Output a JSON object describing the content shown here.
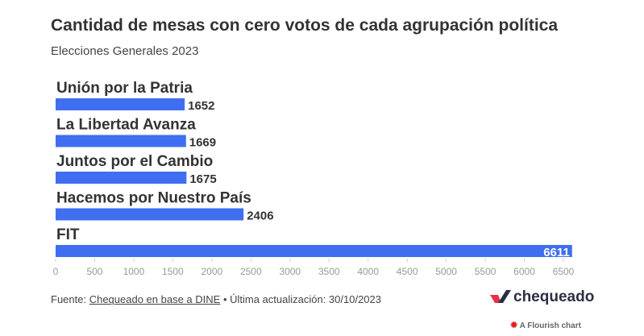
{
  "chart_data": {
    "type": "bar",
    "orientation": "horizontal",
    "title": "Cantidad de mesas con cero votos de cada agrupación política",
    "subtitle": "Elecciones Generales 2023",
    "categories": [
      "Unión por la Patria",
      "La Libertad Avanza",
      "Juntos por el Cambio",
      "Hacemos por Nuestro País",
      "FIT"
    ],
    "values": [
      1652,
      1669,
      1675,
      2406,
      6611
    ],
    "xlim": [
      0,
      6500
    ],
    "ticks": [
      0,
      500,
      1000,
      1500,
      2000,
      2500,
      3000,
      3500,
      4000,
      4500,
      5000,
      5500,
      6000,
      6500
    ],
    "bar_color": "#3f6ff0"
  },
  "footer": {
    "prefix": "Fuente: ",
    "link": "Chequeado en base a DINE",
    "suffix": " • Última actualización: 30/10/2023"
  },
  "logo": {
    "text": "chequeado"
  },
  "flourish": {
    "text": "A Flourish chart"
  }
}
